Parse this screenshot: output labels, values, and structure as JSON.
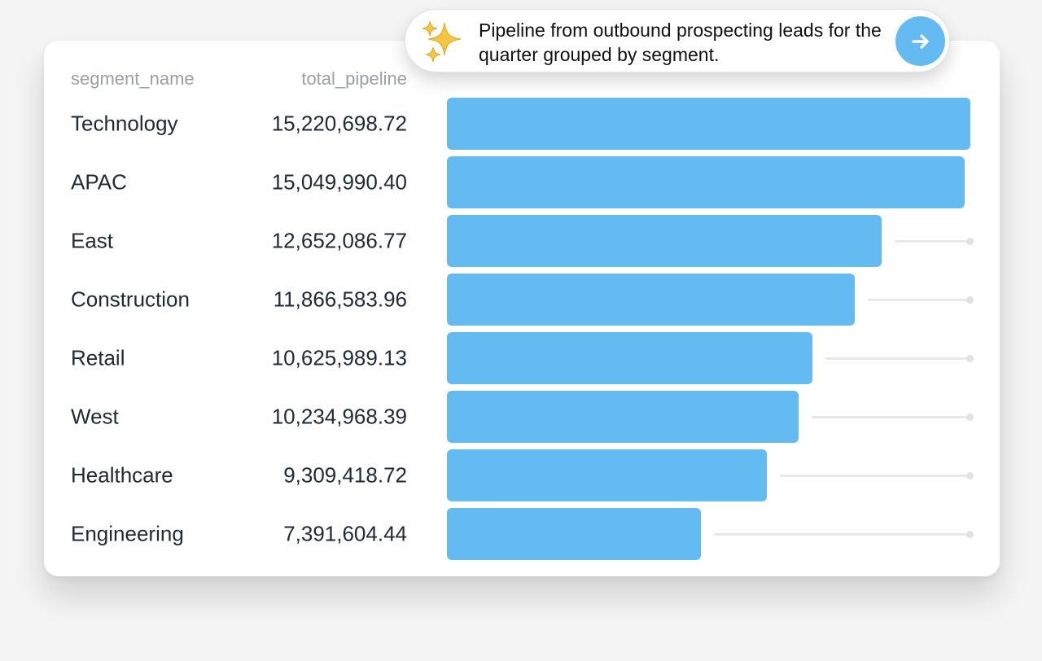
{
  "table": {
    "columns": [
      "segment_name",
      "total_pipeline"
    ]
  },
  "prompt": {
    "text": "Pipeline from outbound prospecting leads for the quarter grouped by segment.",
    "icon": "sparkles-icon",
    "submit_icon": "arrow-right-icon"
  },
  "colors": {
    "bar": "#63bbf2",
    "track": "#e8e8e8",
    "button": "#63bbf2"
  },
  "chart_data": {
    "type": "bar",
    "orientation": "horizontal",
    "categories": [
      "Technology",
      "APAC",
      "East",
      "Construction",
      "Retail",
      "West",
      "Healthcare",
      "Engineering"
    ],
    "values": [
      15220698.72,
      15049990.4,
      12652086.77,
      11866583.96,
      10625989.13,
      10234968.39,
      9309418.72,
      7391604.44
    ],
    "labels": [
      "15,220,698.72",
      "15,049,990.40",
      "12,652,086.77",
      "11,866,583.96",
      "10,625,989.13",
      "10,234,968.39",
      "9,309,418.72",
      "7,391,604.44"
    ],
    "xlim": [
      0,
      15220698.72
    ],
    "grid": false,
    "legend": "none"
  }
}
